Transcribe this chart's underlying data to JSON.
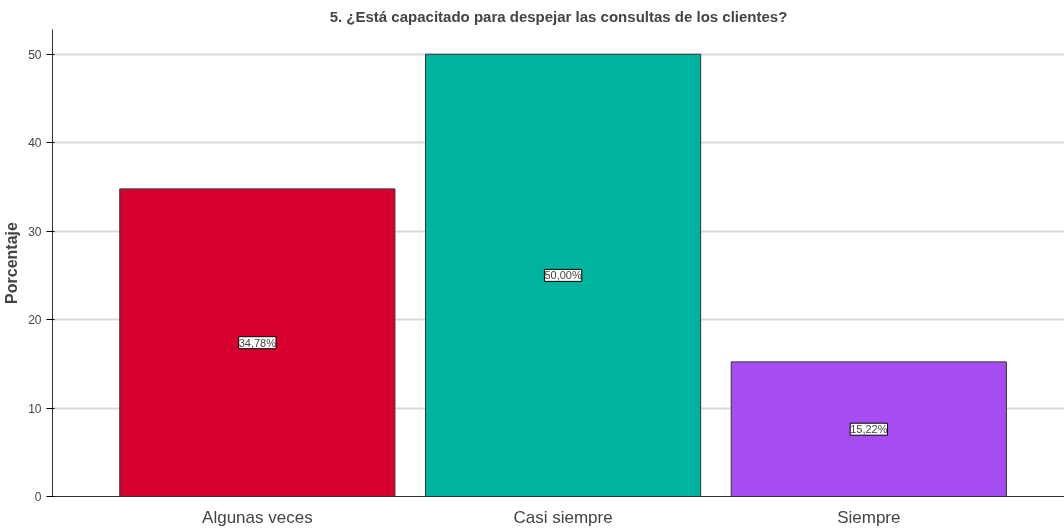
{
  "chart_data": {
    "type": "bar",
    "title": "5. ¿Está capacitado para despejar las consultas de los clientes?",
    "ylabel": "Porcentaje",
    "categories": [
      "Algunas veces",
      "Casi siempre",
      "Siempre"
    ],
    "values": [
      34.78,
      50.0,
      15.22
    ],
    "colors": [
      "#d5002e",
      "#00b39f",
      "#a64cf0"
    ],
    "value_labels": [
      "34,78%",
      "50,00%",
      "15,22%"
    ],
    "ylim": [
      0,
      52.8
    ],
    "yticks": [
      0,
      10,
      20,
      30,
      40,
      50
    ],
    "grid": "y"
  }
}
